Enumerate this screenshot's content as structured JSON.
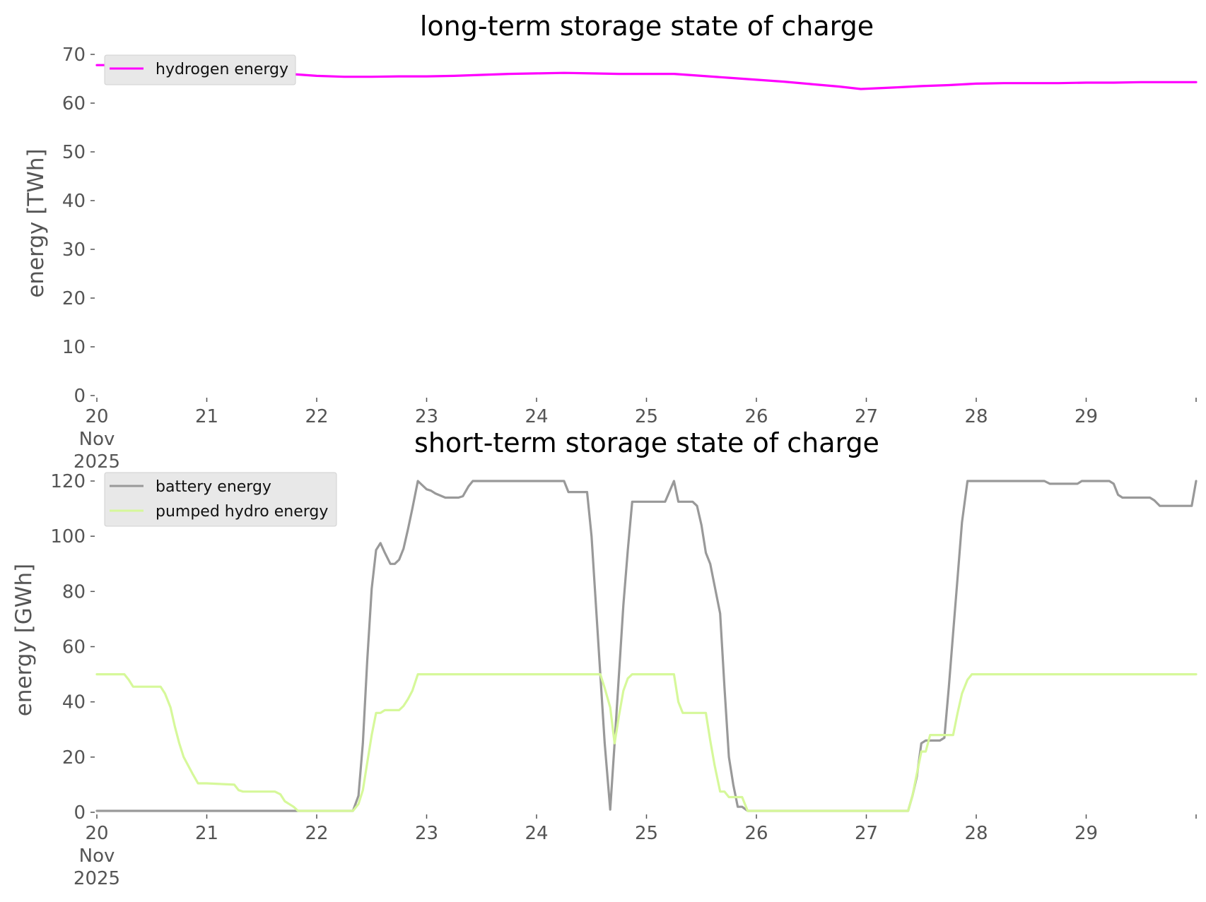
{
  "chart_data": [
    {
      "type": "line",
      "title": "long-term storage state of charge",
      "ylabel": "energy [TWh]",
      "xlabel": "",
      "x_unit": "day (Nov 2025)",
      "xlim": [
        20,
        30
      ],
      "ylim": [
        0,
        70
      ],
      "xticks": [
        20,
        21,
        22,
        23,
        24,
        25,
        26,
        27,
        28,
        29
      ],
      "xtick_labels": [
        "20\nNov\n2025",
        "21",
        "22",
        "23",
        "24",
        "25",
        "26",
        "27",
        "28",
        "29"
      ],
      "yticks": [
        0,
        10,
        20,
        30,
        40,
        50,
        60,
        70
      ],
      "legend": "top-left",
      "grid": false,
      "series": [
        {
          "name": "hydrogen energy",
          "color": "#ff00ff",
          "x": [
            20.0,
            20.25,
            20.5,
            20.75,
            21.0,
            21.25,
            21.5,
            21.75,
            22.0,
            22.25,
            22.5,
            22.75,
            23.0,
            23.25,
            23.5,
            23.75,
            24.0,
            24.25,
            24.5,
            24.75,
            25.0,
            25.25,
            25.5,
            25.75,
            26.0,
            26.25,
            26.5,
            26.75,
            26.95,
            27.25,
            27.5,
            27.75,
            28.0,
            28.25,
            28.5,
            28.75,
            29.0,
            29.25,
            29.5,
            29.75,
            30.0
          ],
          "y": [
            67.8,
            67.8,
            67.6,
            67.2,
            66.8,
            66.5,
            66.3,
            66.0,
            65.6,
            65.4,
            65.4,
            65.5,
            65.5,
            65.6,
            65.8,
            66.0,
            66.1,
            66.2,
            66.1,
            66.0,
            66.0,
            66.0,
            65.6,
            65.2,
            64.8,
            64.4,
            63.9,
            63.4,
            62.9,
            63.2,
            63.5,
            63.7,
            64.0,
            64.1,
            64.1,
            64.1,
            64.2,
            64.2,
            64.3,
            64.3,
            64.3
          ]
        }
      ]
    },
    {
      "type": "line",
      "title": "short-term storage state of charge",
      "ylabel": "energy [GWh]",
      "xlabel": "",
      "x_unit": "day (Nov 2025)",
      "xlim": [
        20,
        30
      ],
      "ylim": [
        0,
        120
      ],
      "xticks": [
        20,
        21,
        22,
        23,
        24,
        25,
        26,
        27,
        28,
        29
      ],
      "xtick_labels": [
        "20\nNov\n2025",
        "21",
        "22",
        "23",
        "24",
        "25",
        "26",
        "27",
        "28",
        "29"
      ],
      "yticks": [
        0,
        20,
        40,
        60,
        80,
        100,
        120
      ],
      "legend": "top-left",
      "grid": false,
      "series": [
        {
          "name": "battery energy",
          "color": "#999999",
          "x": [
            20.0,
            22.33,
            22.38,
            22.42,
            22.46,
            22.5,
            22.54,
            22.58,
            22.62,
            22.67,
            22.71,
            22.75,
            22.79,
            22.83,
            22.87,
            22.92,
            22.96,
            23.0,
            23.04,
            23.08,
            23.17,
            23.25,
            23.29,
            23.33,
            23.38,
            23.42,
            23.46,
            23.5,
            24.25,
            24.29,
            24.46,
            24.5,
            24.54,
            24.58,
            24.62,
            24.67,
            24.71,
            24.75,
            24.79,
            24.83,
            24.87,
            24.92,
            24.96,
            25.17,
            25.25,
            25.29,
            25.42,
            25.46,
            25.5,
            25.54,
            25.58,
            25.62,
            25.67,
            25.71,
            25.75,
            25.79,
            25.83,
            25.87,
            25.92,
            25.96,
            27.38,
            27.42,
            27.46,
            27.5,
            27.54,
            27.58,
            27.67,
            27.71,
            27.75,
            27.79,
            27.83,
            27.87,
            27.92,
            27.96,
            28.62,
            28.67,
            28.71,
            28.92,
            28.96,
            29.0,
            29.21,
            29.25,
            29.29,
            29.33,
            29.58,
            29.62,
            29.67,
            29.92,
            29.96,
            30.0
          ],
          "y": [
            0.5,
            0.5,
            6,
            25,
            55,
            81,
            95,
            97.5,
            94,
            90,
            90,
            91.5,
            95.5,
            102.5,
            110,
            120,
            118.5,
            117,
            116.5,
            115.5,
            114,
            114,
            114,
            114.5,
            118,
            120,
            120,
            120,
            120,
            116,
            116,
            100,
            75,
            50,
            25,
            1,
            25,
            50,
            75,
            95,
            112.5,
            112.5,
            112.5,
            112.5,
            120,
            112.5,
            112.5,
            111,
            104,
            94,
            90,
            82,
            72,
            45,
            20,
            10,
            2,
            2,
            0.5,
            0.5,
            0.5,
            6,
            13,
            25,
            26,
            26,
            26,
            27,
            45,
            65,
            85,
            105,
            120,
            120,
            120,
            119,
            119,
            119,
            120,
            120,
            120,
            119,
            115,
            114,
            114,
            113,
            111,
            111,
            111,
            120
          ]
        },
        {
          "name": "pumped hydro energy",
          "color": "#d6f89a",
          "x": [
            20.0,
            20.25,
            20.29,
            20.33,
            20.58,
            20.62,
            20.67,
            20.71,
            20.75,
            20.79,
            20.83,
            20.87,
            20.92,
            20.96,
            21.0,
            21.25,
            21.29,
            21.33,
            21.62,
            21.67,
            21.71,
            21.75,
            21.79,
            21.83,
            21.87,
            21.92,
            22.33,
            22.38,
            22.42,
            22.46,
            22.5,
            22.54,
            22.58,
            22.62,
            22.67,
            22.75,
            22.79,
            22.83,
            22.87,
            22.92,
            22.96,
            24.58,
            24.62,
            24.67,
            24.71,
            24.75,
            24.79,
            24.83,
            24.87,
            24.92,
            25.25,
            25.29,
            25.33,
            25.38,
            25.54,
            25.58,
            25.62,
            25.67,
            25.71,
            25.75,
            25.79,
            25.87,
            25.92,
            25.96,
            27.38,
            27.42,
            27.46,
            27.5,
            27.54,
            27.58,
            27.62,
            27.75,
            27.79,
            27.83,
            27.87,
            27.92,
            27.96,
            30.0
          ],
          "y": [
            50,
            50,
            48,
            45.5,
            45.5,
            43,
            38,
            31,
            25,
            20,
            17,
            14,
            10.5,
            10.5,
            10.5,
            10,
            8,
            7.5,
            7.5,
            6.5,
            4,
            3,
            2,
            0.5,
            0.5,
            0.5,
            0.5,
            3,
            8,
            18,
            28,
            36,
            36,
            37,
            37,
            37,
            38.5,
            41,
            44,
            50,
            50,
            50,
            45,
            38,
            25,
            35,
            44,
            48.5,
            50,
            50,
            50,
            40,
            36,
            36,
            36,
            26,
            17,
            7.5,
            7.5,
            5.5,
            5.5,
            5.5,
            0.5,
            0.5,
            0.5,
            6,
            14,
            22,
            22,
            28,
            28,
            28,
            28,
            36,
            43,
            48,
            50,
            50
          ]
        }
      ]
    }
  ]
}
